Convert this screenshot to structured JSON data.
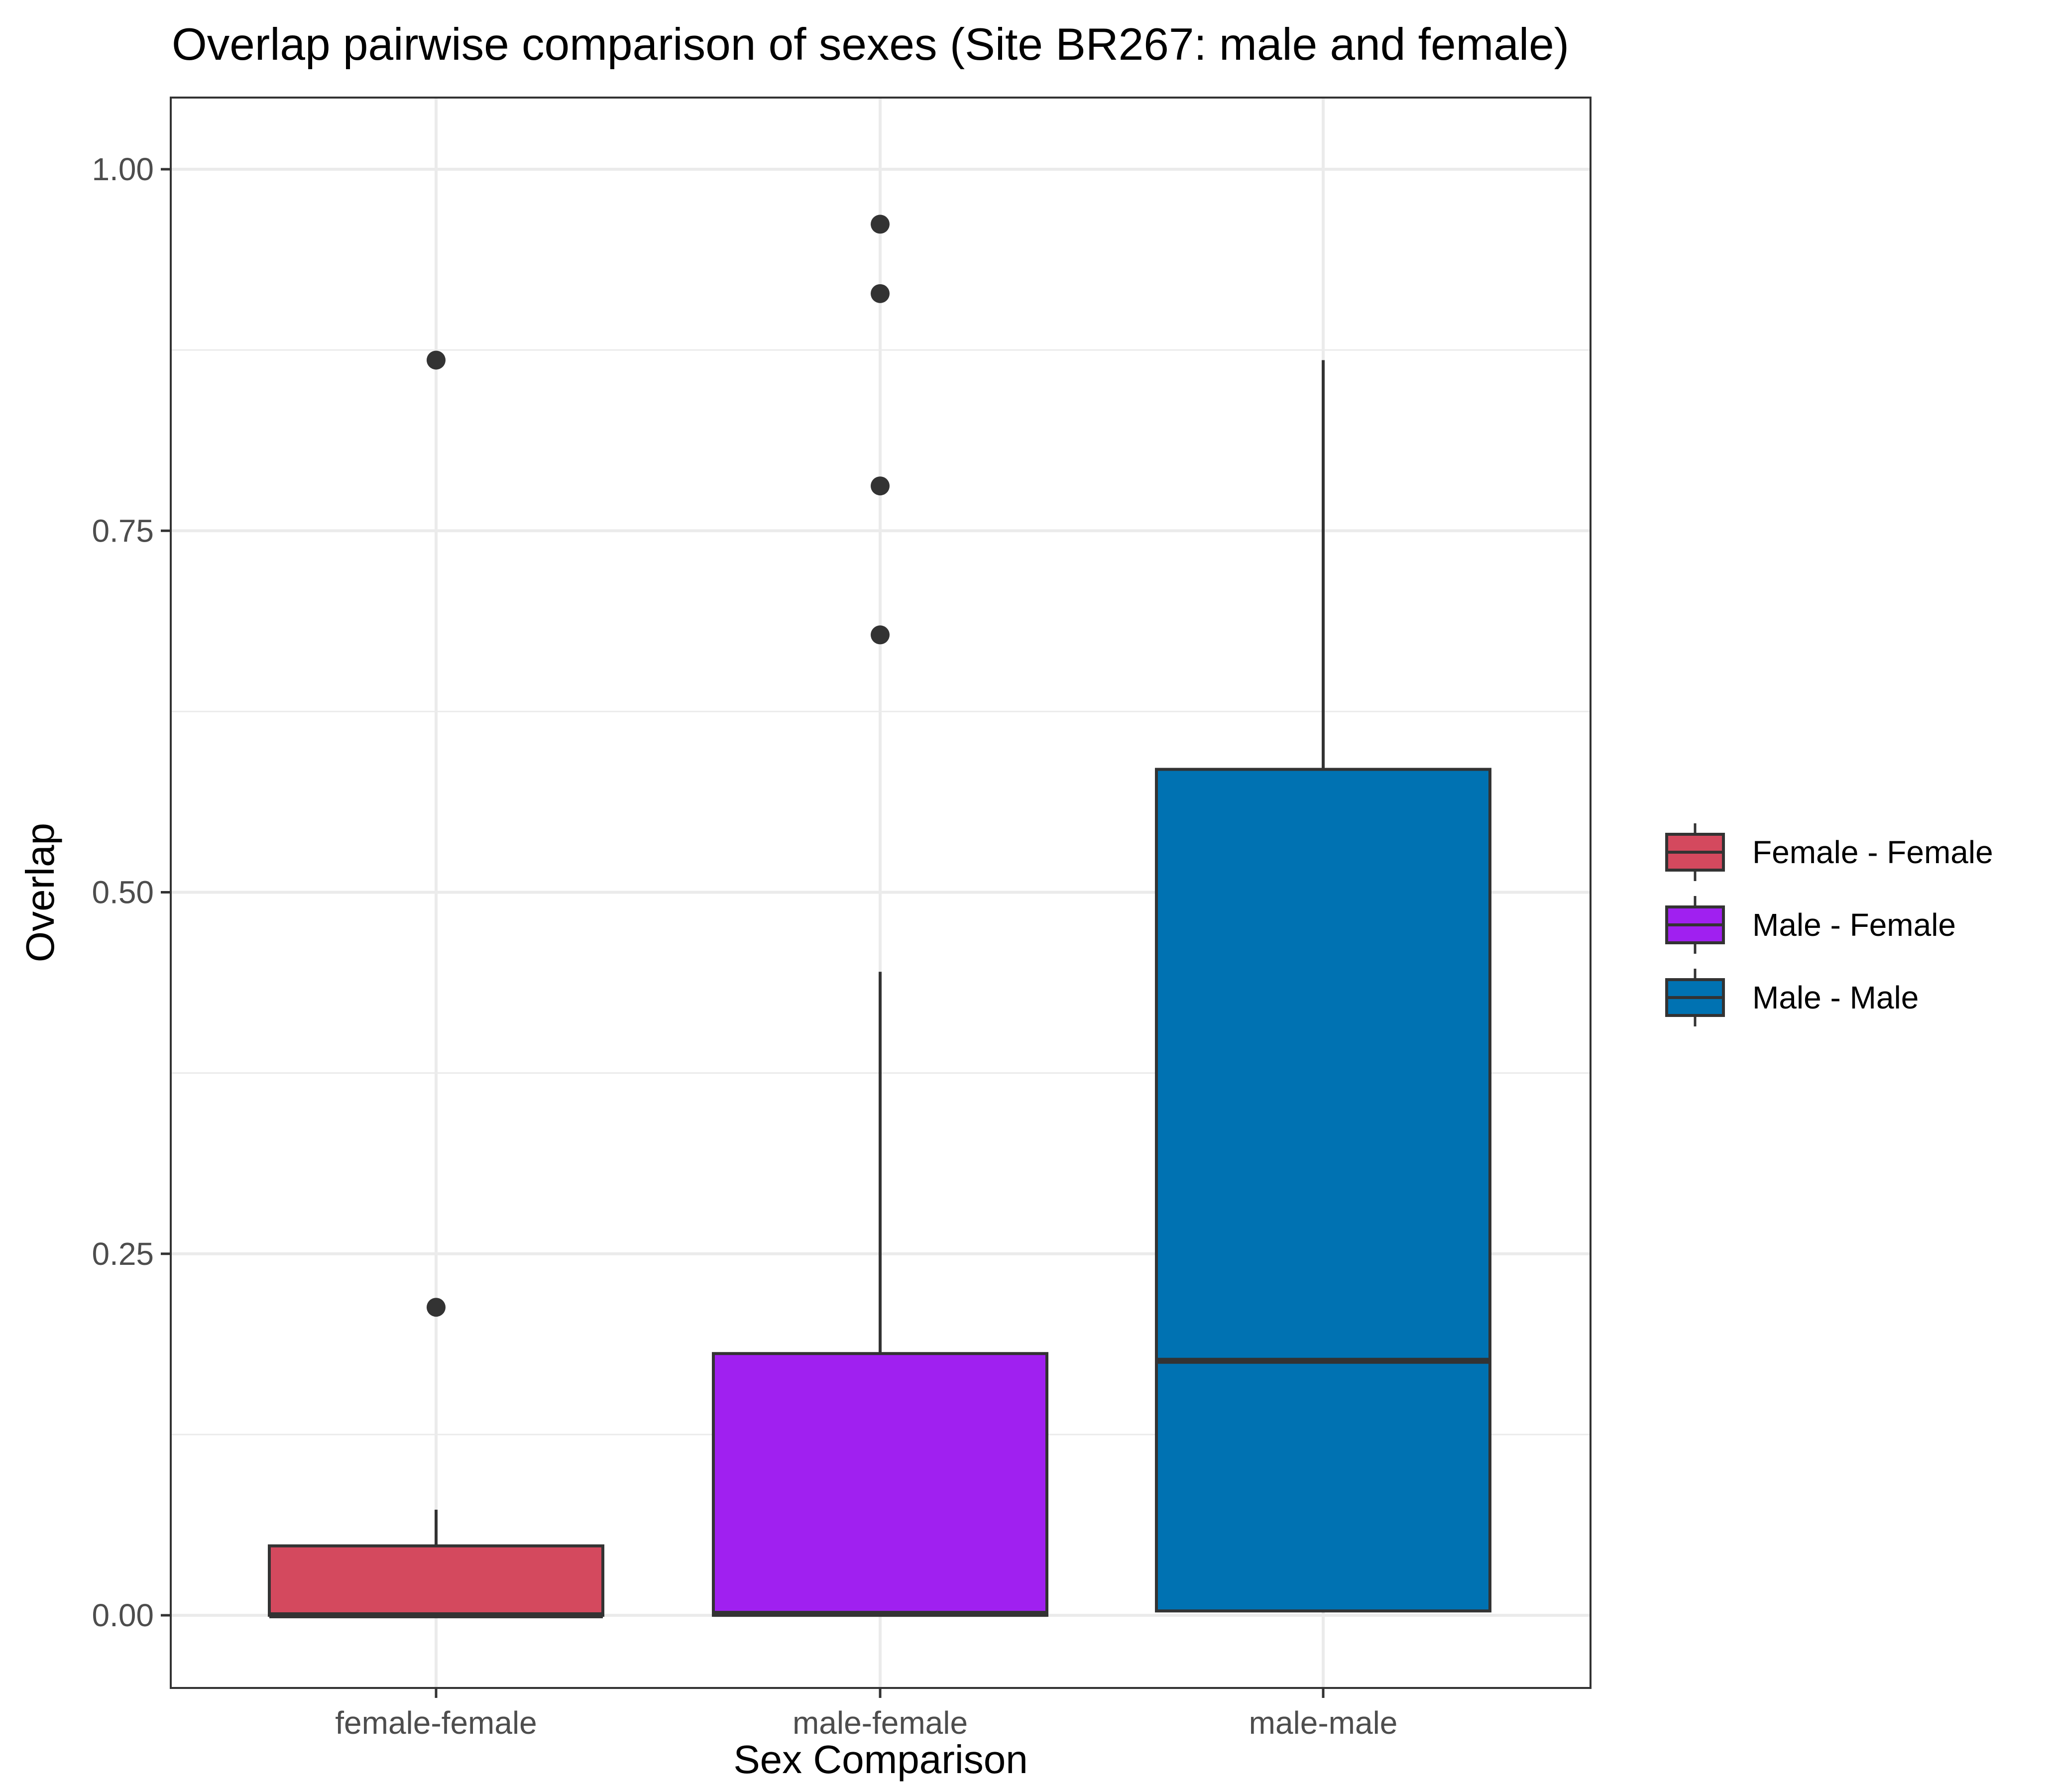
{
  "chart_data": {
    "type": "box",
    "title": "Overlap pairwise comparison of sexes (Site BR267: male and female)",
    "xlabel": "Sex Comparison",
    "ylabel": "Overlap",
    "ylim": [
      -0.047,
      1.05
    ],
    "yticks": [
      "0.00",
      "0.25",
      "0.50",
      "0.75",
      "1.00"
    ],
    "ytick_values": [
      0,
      0.25,
      0.5,
      0.75,
      1.0
    ],
    "grid": true,
    "legend_position": "right",
    "categories": [
      "female-female",
      "male-female",
      "male-male"
    ],
    "boxes": [
      {
        "category": "female-female",
        "legend": "Female - Female",
        "color": "#D4495E",
        "min": 0.0,
        "q1": 0.0,
        "median": 0.0,
        "q3": 0.048,
        "max": 0.073,
        "outliers": [
          0.213,
          0.868
        ]
      },
      {
        "category": "male-female",
        "legend": "Male - Female",
        "color": "#A020F0",
        "min": 0.0,
        "q1": 0.0,
        "median": 0.001,
        "q3": 0.181,
        "max": 0.445,
        "outliers": [
          0.678,
          0.781,
          0.914,
          0.962
        ]
      },
      {
        "category": "male-male",
        "legend": "Male - Male",
        "color": "#0072B2",
        "min": 0.002,
        "q1": 0.003,
        "median": 0.176,
        "q3": 0.585,
        "max": 0.868,
        "outliers": []
      }
    ]
  }
}
